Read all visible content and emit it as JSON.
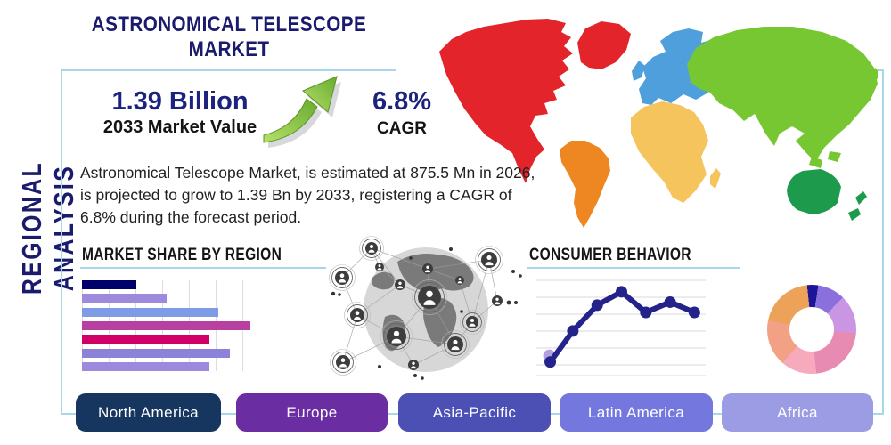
{
  "page": {
    "title": "ASTRONOMICAL TELESCOPE MARKET",
    "side_label": "REGIONAL ANALYSIS"
  },
  "stats": {
    "market_value": "1.39 Billion",
    "market_value_label": "2033 Market Value",
    "cagr_value": "6.8%",
    "cagr_label": "CAGR",
    "description": "Astronomical Telescope Market, is estimated at 875.5 Mn in 2026, is projected to grow to 1.39 Bn by 2033, registering a CAGR of 6.8% during the forecast period."
  },
  "regions": [
    {
      "label": "North America",
      "button_color": "#16365f"
    },
    {
      "label": "Europe",
      "button_color": "#6a2da2"
    },
    {
      "label": "Asia-Pacific",
      "button_color": "#4c4fb3"
    },
    {
      "label": "Latin America",
      "button_color": "#7377de"
    },
    {
      "label": "Africa",
      "button_color": "#9c9ce4"
    }
  ],
  "map_regions": [
    {
      "key": "north-america",
      "color": "#e3242b"
    },
    {
      "key": "greenland",
      "color": "#e3242b"
    },
    {
      "key": "south-america",
      "color": "#ee8722"
    },
    {
      "key": "europe",
      "color": "#4f9fdc"
    },
    {
      "key": "uk",
      "color": "#4f9fdc"
    },
    {
      "key": "africa",
      "color": "#f6c45c"
    },
    {
      "key": "madagascar",
      "color": "#f6c45c"
    },
    {
      "key": "asia",
      "color": "#77c733"
    },
    {
      "key": "japan",
      "color": "#77c733"
    },
    {
      "key": "se-asia-1",
      "color": "#77c733"
    },
    {
      "key": "se-asia-2",
      "color": "#77c733"
    },
    {
      "key": "australia",
      "color": "#1d9a4c"
    },
    {
      "key": "new-zealand-1",
      "color": "#1d9a4c"
    },
    {
      "key": "new-zealand-2",
      "color": "#1d9a4c"
    }
  ],
  "chart_data": [
    {
      "type": "bar",
      "title": "MARKET SHARE BY REGION",
      "orientation": "horizontal",
      "values": [
        29,
        45,
        73,
        90,
        68,
        79,
        68
      ],
      "value_note": "relative bar lengths, % of chart width; axis unlabeled",
      "bar_colors": [
        "#00006b",
        "#9e8add",
        "#7d9ce5",
        "#b840a0",
        "#d10068",
        "#8c82da",
        "#9e8add"
      ],
      "grid": "vertical gridlines, no tick labels"
    },
    {
      "type": "line",
      "title": "CONSUMER BEHAVIOR",
      "x_pct": [
        9,
        22,
        36,
        50,
        64,
        78,
        92
      ],
      "values": [
        8,
        38,
        63,
        76,
        56,
        66,
        56
      ],
      "value_note": "relative heights 0-100; axes unlabeled",
      "line_color": "#23238a",
      "first_point_halo_color": "#b4a0e0",
      "grid": "horizontal gridlines, no tick labels"
    },
    {
      "type": "pie",
      "donut": true,
      "title": "",
      "values": [
        4,
        10,
        14,
        22,
        13,
        17,
        20
      ],
      "colors": [
        "#1c1599",
        "#8a70dd",
        "#ca96e4",
        "#e88bb2",
        "#f6aabc",
        "#f2a184",
        "#eca258"
      ],
      "start_angle_deg": -6,
      "value_note": "segment shares estimated from arc angles; no labels shown"
    }
  ],
  "colors": {
    "accent_navy": "#1b1b6e",
    "box_border": "#a9d7ea",
    "growth_arrow_green": "#7dc242"
  },
  "icons": {
    "growth_arrow": "up-right green swoosh arrow",
    "globe_network": "grayscale globe with connected people nodes"
  }
}
